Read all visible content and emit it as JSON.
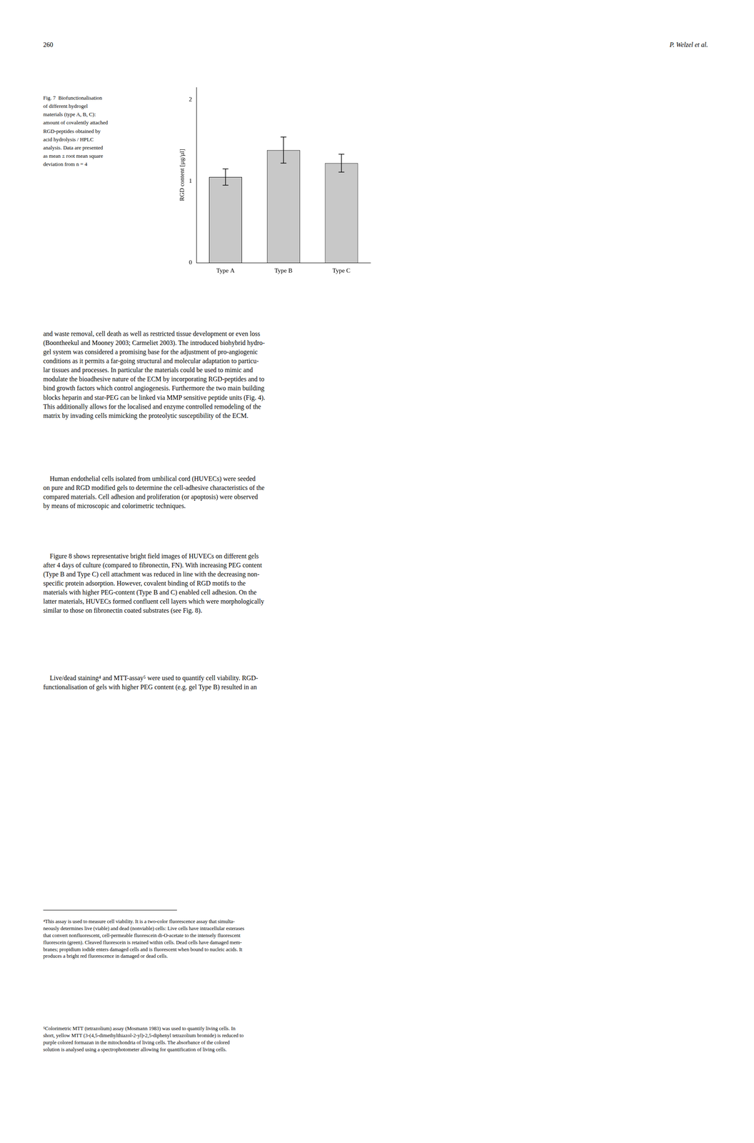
{
  "chart_data": {
    "type": "bar",
    "categories": [
      "Type A",
      "Type B",
      "Type C"
    ],
    "values": [
      1.05,
      1.38,
      1.22
    ],
    "errors": [
      0.1,
      0.16,
      0.11
    ],
    "color": "#c8c8c8",
    "ylabel": "RGD content [µg/µl]",
    "ylim": [
      0,
      2.15
    ],
    "yticks": [
      0,
      1,
      2
    ],
    "grid": false,
    "annotations": [
      "260",
      "P. Welzel et al.",
      "Fig. 7  Biofunctionalisation\nof different hydrogel\nmaterials (type A, B, C):\namount of covalently attached\nRGD-peptides obtained by\nacid hydrolysis / HPLC\nanalysis. Data are presented\nas mean ± root mean square\ndeviation from n = 4",
      "and waste removal, cell death as well as restricted tissue development or even loss\n(Boontheekul and Mooney 2003; Carmeliet 2003). The introduced biohybrid hydro-\ngel system was considered a promising base for the adjustment of pro-angiogenic\nconditions as it permits a far-going structural and molecular adaptation to particu-\nlar tissues and processes. In particular the materials could be used to mimic and\nmodulate the bioadhesive nature of the ECM by incorporating RGD-peptides and to\nbind growth factors which control angiogenesis. Furthermore the two main building\nblocks heparin and star-PEG can be linked via MMP sensitive peptide units (Fig. 4).\nThis additionally allows for the localised and enzyme controlled remodeling of the\nmatrix by invading cells mimicking the proteolytic susceptibility of the ECM.",
      "    Human endothelial cells isolated from umbilical cord (HUVECs) were seeded\non pure and RGD modified gels to determine the cell-adhesive characteristics of the\ncompared materials. Cell adhesion and proliferation (or apoptosis) were observed\nby means of microscopic and colorimetric techniques.",
      "    Figure 8 shows representative bright field images of HUVECs on different gels\nafter 4 days of culture (compared to fibronectin, FN). With increasing PEG content\n(Type B and Type C) cell attachment was reduced in line with the decreasing non-\nspecific protein adsorption. However, covalent binding of RGD motifs to the\nmaterials with higher PEG-content (Type B and C) enabled cell adhesion. On the\nlatter materials, HUVECs formed confluent cell layers which were morphologically\nsimilar to those on fibronectin coated substrates (see Fig. 8).",
      "    Live/dead staining⁴ and MTT-assay⁵ were used to quantify cell viability. RGD-\nfunctionalisation of gels with higher PEG content (e.g. gel Type B) resulted in an",
      "⁴This assay is used to measure cell viability. It is a two-color fluorescence assay that simulta-\nneously determines live (viable) and dead (nonviable) cells: Live cells have intracellular esterases\nthat convert nonfluorescent, cell-permeable fluorescein di-O-acetate to the intensely fluorescent\nfluorescein (green). Cleaved fluorescein is retained within cells. Dead cells have damaged mem-\nbranes; propidium iodide enters damaged cells and is fluorescent when bound to nucleic acids. It\nproduces a bright red fluorescence in damaged or dead cells.",
      "⁵Colorimetric MTT (tetrazolium) assay (Mosmann 1983) was used to quantify living cells. In\nshort, yellow MTT (3-(4,5-dimethylthiazol-2-yl)-2,5-diphenyl tetrazolium bromide) is reduced to\npurple colored formazan in the mitochondria of living cells. The absorbance of the colored\nsolution is analysed using a spectrophotometer allowing for quantification of living cells."
    ]
  }
}
